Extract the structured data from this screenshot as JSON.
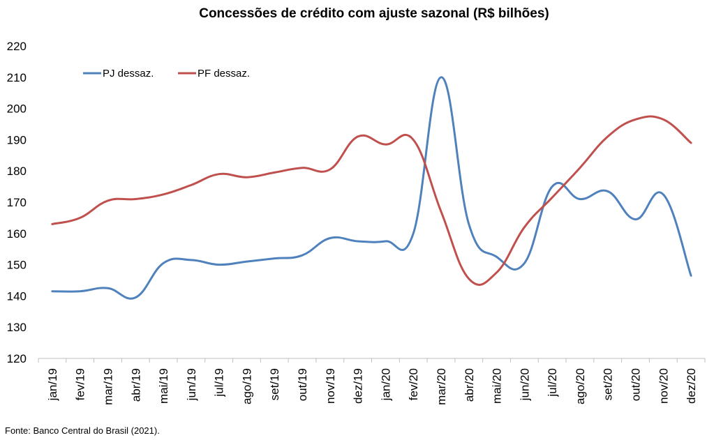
{
  "chart_data": {
    "type": "line",
    "title": "Concessões de crédito com ajuste sazonal (R$ bilhões)",
    "categories": [
      "jan/19",
      "fev/19",
      "mar/19",
      "abr/19",
      "mai/19",
      "jun/19",
      "jul/19",
      "ago/19",
      "set/19",
      "out/19",
      "nov/19",
      "dez/19",
      "jan/20",
      "fev/20",
      "mar/20",
      "abr/20",
      "mai/20",
      "jun/20",
      "jul/20",
      "ago/20",
      "set/20",
      "out/20",
      "nov/20",
      "dez/20"
    ],
    "series": [
      {
        "name": "PJ dessaz.",
        "color": "#4F81BD",
        "values": [
          141.5,
          141.5,
          142.5,
          139.5,
          150.5,
          151.5,
          150.0,
          151.0,
          152.0,
          153.0,
          158.5,
          157.5,
          157.5,
          160.0,
          210.0,
          163.0,
          152.5,
          150.5,
          175.0,
          171.0,
          173.5,
          164.5,
          172.5,
          146.5
        ]
      },
      {
        "name": "PF dessaz.",
        "color": "#C0504D",
        "values": [
          163.0,
          165.0,
          170.5,
          171.0,
          172.5,
          175.5,
          179.0,
          178.0,
          179.5,
          181.0,
          180.5,
          191.0,
          188.5,
          190.0,
          167.0,
          145.5,
          147.5,
          162.0,
          171.5,
          181.0,
          191.0,
          196.5,
          196.5,
          189.0
        ]
      }
    ],
    "ylim": [
      120,
      220
    ],
    "yticks": [
      120,
      130,
      140,
      150,
      160,
      170,
      180,
      190,
      200,
      210,
      220
    ],
    "legend": "top-left",
    "grid": false,
    "xlabel": "",
    "ylabel": ""
  },
  "source_note": "Fonte: Banco Central do Brasil (2021)."
}
